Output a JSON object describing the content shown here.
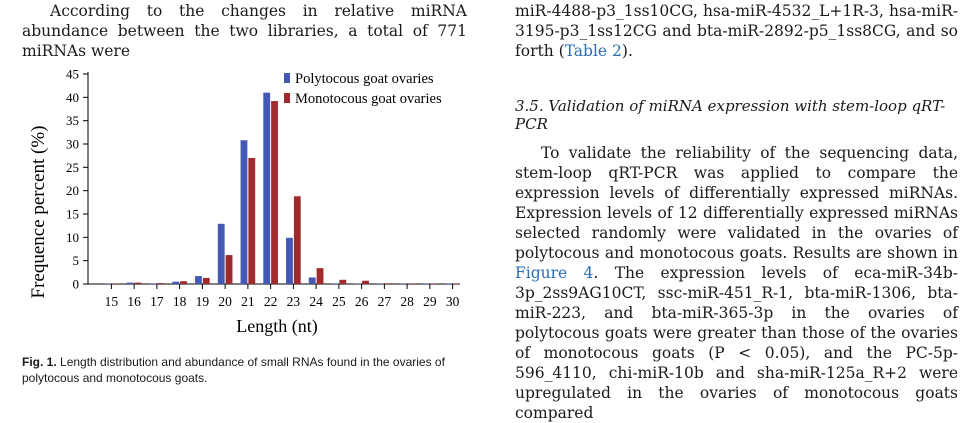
{
  "left_text": {
    "paragraph": "According to the changes in relative miRNA abundance between the two libraries, a total of 771 miRNAs were"
  },
  "right_text": {
    "top_paragraph": "miR-4488-p3_1ss10CG, hsa-miR-4532_L+1R-3, hsa-miR-3195-p3_1ss12CG and bta-miR-2892-p5_1ss8CG, and so forth (",
    "top_link": "Table 2",
    "top_end": ").",
    "section_heading": "3.5. Validation of miRNA expression with stem-loop qRT-PCR",
    "para_a": "To validate the reliability of the sequencing data, stem-loop qRT-PCR was applied to compare the expression levels of differentially expressed miRNAs. Expression levels of 12 differentially expressed miRNAs selected randomly were validated in the ovaries of polytocous and monotocous goats. Results are shown in ",
    "para_link": "Figure 4",
    "para_b": ". The expression levels of eca-miR-34b-3p_2ss9AG10CT, ssc-miR-451_R-1, bta-miR-1306, bta-miR-223, and bta-miR-365-3p in the ovaries of polytocous goats were greater than those of the ovaries of monotocous goats (P < 0.05), and the PC-5p-596_4110, chi-miR-10b and sha-miR-125a_R+2 were upregulated in the ovaries of monotocous goats compared"
  },
  "caption": {
    "label": "Fig. 1.",
    "text": "Length distribution and abundance of small RNAs found in the ovaries of polytocous and monotocous goats."
  },
  "colors": {
    "polytocous": "#4359b5",
    "monotocous": "#a12a2d",
    "link": "#2a6db5"
  },
  "chart_data": {
    "type": "bar",
    "xlabel": "Length (nt)",
    "ylabel": "Frequence percent (%)",
    "ylim": [
      0,
      45
    ],
    "yticks": [
      0,
      5,
      10,
      15,
      20,
      25,
      30,
      35,
      40,
      45
    ],
    "categories": [
      "15",
      "16",
      "17",
      "18",
      "19",
      "20",
      "21",
      "22",
      "23",
      "24",
      "25",
      "26",
      "27",
      "28",
      "29",
      "30"
    ],
    "legend_position": "top-right",
    "series": [
      {
        "name": "Polytocous goat ovaries",
        "values": [
          0.1,
          0.3,
          0.1,
          0.5,
          1.7,
          12.9,
          30.8,
          41.0,
          9.9,
          1.4,
          0.1,
          0.05,
          0.05,
          0.05,
          0.05,
          0.05
        ]
      },
      {
        "name": "Monotocous goat ovaries",
        "values": [
          0.1,
          0.3,
          0.2,
          0.6,
          1.3,
          6.2,
          27.0,
          39.2,
          18.8,
          3.4,
          0.9,
          0.7,
          0.15,
          0.1,
          0.1,
          0.05
        ]
      }
    ]
  }
}
